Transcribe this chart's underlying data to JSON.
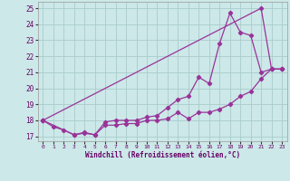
{
  "background_color": "#cce8e8",
  "grid_color": "#aacccc",
  "line_color": "#993399",
  "xlabel": "Windchill (Refroidissement éolien,°C)",
  "xlim": [
    -0.5,
    23.5
  ],
  "ylim": [
    16.7,
    25.4
  ],
  "yticks": [
    17,
    18,
    19,
    20,
    21,
    22,
    23,
    24,
    25
  ],
  "xticks": [
    0,
    1,
    2,
    3,
    4,
    5,
    6,
    7,
    8,
    9,
    10,
    11,
    12,
    13,
    14,
    15,
    16,
    17,
    18,
    19,
    20,
    21,
    22,
    23
  ],
  "line1_x": [
    0,
    1,
    2,
    3,
    4,
    5,
    6,
    7,
    8,
    9,
    10,
    11,
    12,
    13,
    14,
    15,
    16,
    17,
    18,
    19,
    20,
    21,
    22,
    23
  ],
  "line1_y": [
    18.0,
    17.6,
    17.4,
    17.1,
    17.2,
    17.1,
    17.7,
    17.7,
    17.8,
    17.8,
    18.0,
    18.0,
    18.1,
    18.5,
    18.1,
    18.5,
    18.5,
    18.7,
    19.0,
    19.5,
    19.8,
    20.6,
    21.2,
    21.2
  ],
  "line2_x": [
    0,
    3,
    4,
    5,
    6,
    7,
    8,
    9,
    10,
    11,
    12,
    13,
    14,
    15,
    16,
    17,
    18,
    19,
    20,
    21,
    22,
    23
  ],
  "line2_y": [
    18.0,
    17.1,
    17.25,
    17.1,
    17.9,
    18.0,
    18.0,
    18.0,
    18.2,
    18.3,
    18.8,
    19.3,
    19.5,
    20.7,
    20.3,
    22.8,
    24.7,
    23.5,
    23.3,
    21.0,
    21.2,
    21.2
  ],
  "line3_x": [
    0,
    21,
    22,
    23
  ],
  "line3_y": [
    18.0,
    25.0,
    21.2,
    21.2
  ]
}
